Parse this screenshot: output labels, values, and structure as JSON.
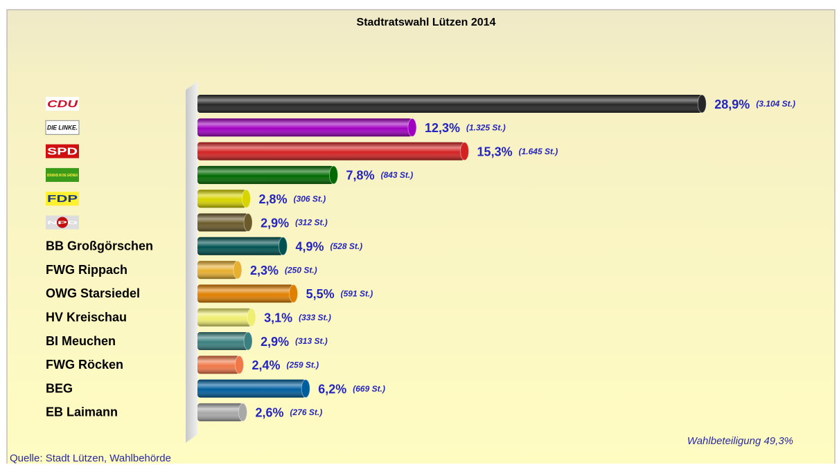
{
  "chart_data": {
    "type": "bar",
    "title": "Stadtratswahl Lützen 2014",
    "categories": [
      "CDU",
      "DIE LINKE.",
      "SPD",
      "BÜNDNIS 90 DIE GRÜNEN",
      "FDP",
      "NPD",
      "BB Großgörschen",
      "FWG Rippach",
      "OWG Starsiedel",
      "HV Kreischau",
      "BI Meuchen",
      "FWG Röcken",
      "BEG",
      "EB Laimann"
    ],
    "values": [
      28.9,
      12.3,
      15.3,
      7.8,
      2.8,
      2.9,
      4.9,
      2.3,
      5.5,
      3.1,
      2.9,
      2.4,
      6.2,
      2.6
    ],
    "value_labels": [
      "28,9%",
      "12,3%",
      "15,3%",
      "7,8%",
      "2,8%",
      "2,9%",
      "4,9%",
      "2,3%",
      "5,5%",
      "3,1%",
      "2,9%",
      "2,4%",
      "6,2%",
      "2,6%"
    ],
    "votes": [
      3104,
      1325,
      1645,
      843,
      306,
      312,
      528,
      250,
      591,
      333,
      313,
      259,
      669,
      276
    ],
    "vote_labels": [
      "(3.104 St.)",
      "(1.325 St.)",
      "(1.645 St.)",
      "(843 St.)",
      "(306 St.)",
      "(312 St.)",
      "(528 St.)",
      "(250 St.)",
      "(591 St.)",
      "(333 St.)",
      "(313 St.)",
      "(259 St.)",
      "(669 St.)",
      "(276 St.)"
    ],
    "colors": [
      "#262626",
      "#a000c0",
      "#d42222",
      "#006a00",
      "#d8d400",
      "#6b5a2a",
      "#005252",
      "#e8b030",
      "#e08000",
      "#f0ee70",
      "#3a8080",
      "#f07848",
      "#005e9e",
      "#a8a8a8"
    ],
    "xlim": [
      0,
      30
    ],
    "annotation": "Wahlbeteiligung 49,3%",
    "source": "Quelle: Stadt Lützen, Wahlbehörde"
  }
}
